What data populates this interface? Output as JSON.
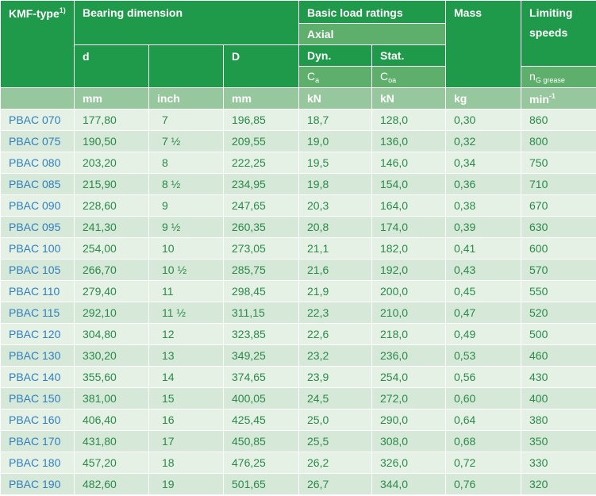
{
  "header": {
    "kmf_type": "KMF-type",
    "kmf_note": "1)",
    "bearing_dimension": "Bearing dimension",
    "basic_load_ratings": "Basic load ratings",
    "mass": "Mass",
    "limiting_speeds_1": "Limiting",
    "limiting_speeds_2": "speeds",
    "axial": "Axial",
    "d": "d",
    "D": "D",
    "dyn": "Dyn.",
    "stat": "Stat.",
    "ca": "C",
    "ca_sub": "a",
    "coa": "C",
    "coa_sub": "oa",
    "n": "n",
    "n_sub": "G grease"
  },
  "units": {
    "d_mm": "mm",
    "d_inch": "inch",
    "D_mm": "mm",
    "dyn": "kN",
    "stat": "kN",
    "mass": "kg",
    "speed": "min",
    "speed_sup": "-1"
  },
  "rows": [
    {
      "type": "PBAC  070",
      "d_mm": "177,80",
      "d_inch": "7",
      "D_mm": "196,85",
      "dyn": "18,7",
      "stat": "128,0",
      "mass": "0,30",
      "speed": "860"
    },
    {
      "type": "PBAC  075",
      "d_mm": "190,50",
      "d_inch": "7 ½",
      "D_mm": "209,55",
      "dyn": "19,0",
      "stat": "136,0",
      "mass": "0,32",
      "speed": "800"
    },
    {
      "type": "PBAC  080",
      "d_mm": "203,20",
      "d_inch": "8",
      "D_mm": "222,25",
      "dyn": "19,5",
      "stat": "146,0",
      "mass": "0,34",
      "speed": "750"
    },
    {
      "type": "PBAC  085",
      "d_mm": "215,90",
      "d_inch": "8 ½",
      "D_mm": "234,95",
      "dyn": "19,8",
      "stat": "154,0",
      "mass": "0,36",
      "speed": "710"
    },
    {
      "type": "PBAC  090",
      "d_mm": "228,60",
      "d_inch": "9",
      "D_mm": "247,65",
      "dyn": "20,3",
      "stat": "164,0",
      "mass": "0,38",
      "speed": "670"
    },
    {
      "type": "PBAC  095",
      "d_mm": "241,30",
      "d_inch": "9 ½",
      "D_mm": "260,35",
      "dyn": "20,8",
      "stat": "174,0",
      "mass": "0,39",
      "speed": "630"
    },
    {
      "type": "PBAC  100",
      "d_mm": "254,00",
      "d_inch": "10",
      "D_mm": "273,05",
      "dyn": "21,1",
      "stat": "182,0",
      "mass": "0,41",
      "speed": "600"
    },
    {
      "type": "PBAC  105",
      "d_mm": "266,70",
      "d_inch": "10 ½",
      "D_mm": "285,75",
      "dyn": "21,6",
      "stat": "192,0",
      "mass": "0,43",
      "speed": "570"
    },
    {
      "type": "PBAC  110",
      "d_mm": "279,40",
      "d_inch": "11",
      "D_mm": "298,45",
      "dyn": "21,9",
      "stat": "200,0",
      "mass": "0,45",
      "speed": "550"
    },
    {
      "type": "PBAC  115",
      "d_mm": "292,10",
      "d_inch": "11 ½",
      "D_mm": "311,15",
      "dyn": "22,3",
      "stat": "210,0",
      "mass": "0,47",
      "speed": "520"
    },
    {
      "type": "PBAC  120",
      "d_mm": "304,80",
      "d_inch": "12",
      "D_mm": "323,85",
      "dyn": "22,6",
      "stat": "218,0",
      "mass": "0,49",
      "speed": "500"
    },
    {
      "type": "PBAC  130",
      "d_mm": "330,20",
      "d_inch": "13",
      "D_mm": "349,25",
      "dyn": "23,2",
      "stat": "236,0",
      "mass": "0,53",
      "speed": "460"
    },
    {
      "type": "PBAC  140",
      "d_mm": "355,60",
      "d_inch": "14",
      "D_mm": "374,65",
      "dyn": "23,9",
      "stat": "254,0",
      "mass": "0,56",
      "speed": "430"
    },
    {
      "type": "PBAC  150",
      "d_mm": "381,00",
      "d_inch": "15",
      "D_mm": "400,05",
      "dyn": "24,5",
      "stat": "272,0",
      "mass": "0,60",
      "speed": "400"
    },
    {
      "type": "PBAC  160",
      "d_mm": "406,40",
      "d_inch": "16",
      "D_mm": "425,45",
      "dyn": "25,0",
      "stat": "290,0",
      "mass": "0,64",
      "speed": "380"
    },
    {
      "type": "PBAC  170",
      "d_mm": "431,80",
      "d_inch": "17",
      "D_mm": "450,85",
      "dyn": "25,5",
      "stat": "308,0",
      "mass": "0,68",
      "speed": "350"
    },
    {
      "type": "PBAC  180",
      "d_mm": "457,20",
      "d_inch": "18",
      "D_mm": "476,25",
      "dyn": "26,2",
      "stat": "326,0",
      "mass": "0,72",
      "speed": "330"
    },
    {
      "type": "PBAC  190",
      "d_mm": "482,60",
      "d_inch": "19",
      "D_mm": "501,65",
      "dyn": "26,7",
      "stat": "344,0",
      "mass": "0,76",
      "speed": "320"
    }
  ],
  "colors": {
    "header_dark": "#1f9a4a",
    "header_light": "#5eae6c",
    "unit_row": "#97c89d",
    "row_light": "#e6f1e6",
    "row_alt": "#d6e8d7",
    "value_text": "#2a8a4a",
    "type_text": "#2f7fbf"
  }
}
